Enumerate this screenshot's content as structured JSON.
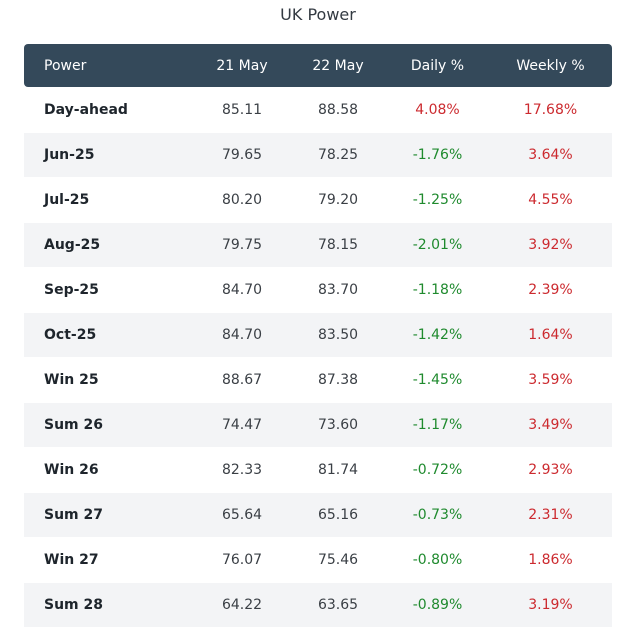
{
  "title": "UK Power",
  "colors": {
    "header_bg": "#34495a",
    "positive": "#cc2a2f",
    "negative": "#1f8a2e",
    "alt_row": "#f3f4f6"
  },
  "headers": {
    "name": "Power",
    "d1": "21 May",
    "d2": "22 May",
    "daily": "Daily %",
    "weekly": "Weekly %"
  },
  "rows": [
    {
      "name": "Day-ahead",
      "d1": "85.11",
      "d2": "88.58",
      "daily": "4.08%",
      "weekly": "17.68%"
    },
    {
      "name": "Jun-25",
      "d1": "79.65",
      "d2": "78.25",
      "daily": "-1.76%",
      "weekly": "3.64%"
    },
    {
      "name": "Jul-25",
      "d1": "80.20",
      "d2": "79.20",
      "daily": "-1.25%",
      "weekly": "4.55%"
    },
    {
      "name": "Aug-25",
      "d1": "79.75",
      "d2": "78.15",
      "daily": "-2.01%",
      "weekly": "3.92%"
    },
    {
      "name": "Sep-25",
      "d1": "84.70",
      "d2": "83.70",
      "daily": "-1.18%",
      "weekly": "2.39%"
    },
    {
      "name": "Oct-25",
      "d1": "84.70",
      "d2": "83.50",
      "daily": "-1.42%",
      "weekly": "1.64%"
    },
    {
      "name": "Win 25",
      "d1": "88.67",
      "d2": "87.38",
      "daily": "-1.45%",
      "weekly": "3.59%"
    },
    {
      "name": "Sum 26",
      "d1": "74.47",
      "d2": "73.60",
      "daily": "-1.17%",
      "weekly": "3.49%"
    },
    {
      "name": "Win 26",
      "d1": "82.33",
      "d2": "81.74",
      "daily": "-0.72%",
      "weekly": "2.93%"
    },
    {
      "name": "Sum 27",
      "d1": "65.64",
      "d2": "65.16",
      "daily": "-0.73%",
      "weekly": "2.31%"
    },
    {
      "name": "Win 27",
      "d1": "76.07",
      "d2": "75.46",
      "daily": "-0.80%",
      "weekly": "1.86%"
    },
    {
      "name": "Sum 28",
      "d1": "64.22",
      "d2": "63.65",
      "daily": "-0.89%",
      "weekly": "3.19%"
    }
  ]
}
